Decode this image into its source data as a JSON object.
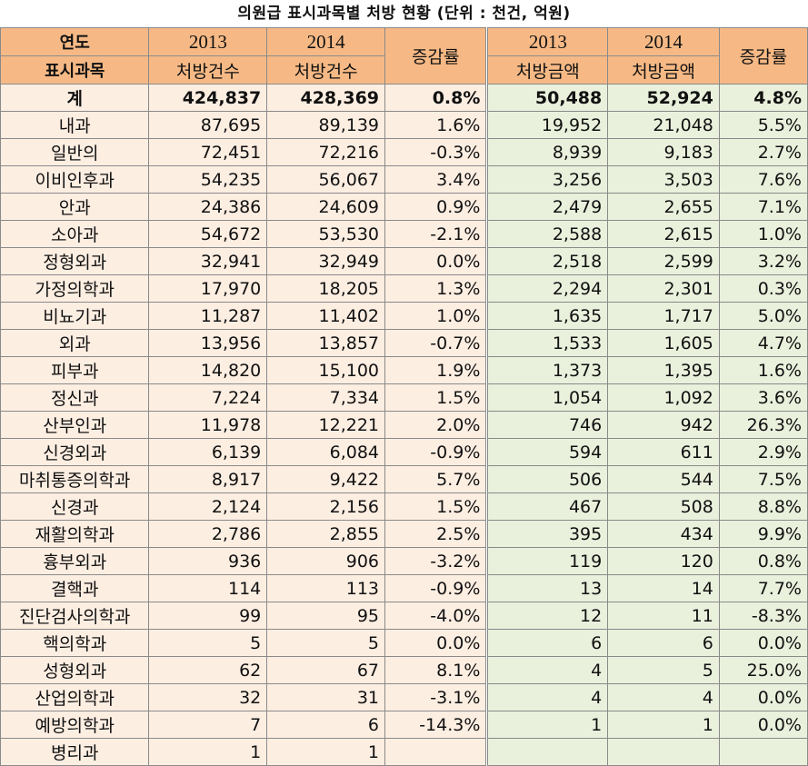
{
  "title": "의원급 표시과목별 처방 현황  (단위 : 천건, 억원)",
  "header": {
    "year_label": "연도",
    "dept_label": "표시과목",
    "year1": "2013",
    "year2": "2014",
    "count_label": "처방건수",
    "amount_label": "처방금액",
    "rate_label": "증감률"
  },
  "rows": [
    {
      "dept": "계",
      "c13": "424,837",
      "c14": "428,369",
      "cr": "0.8%",
      "a13": "50,488",
      "a14": "52,924",
      "ar": "4.8%"
    },
    {
      "dept": "내과",
      "c13": "87,695",
      "c14": "89,139",
      "cr": "1.6%",
      "a13": "19,952",
      "a14": "21,048",
      "ar": "5.5%"
    },
    {
      "dept": "일반의",
      "c13": "72,451",
      "c14": "72,216",
      "cr": "-0.3%",
      "a13": "8,939",
      "a14": "9,183",
      "ar": "2.7%"
    },
    {
      "dept": "이비인후과",
      "c13": "54,235",
      "c14": "56,067",
      "cr": "3.4%",
      "a13": "3,256",
      "a14": "3,503",
      "ar": "7.6%"
    },
    {
      "dept": "안과",
      "c13": "24,386",
      "c14": "24,609",
      "cr": "0.9%",
      "a13": "2,479",
      "a14": "2,655",
      "ar": "7.1%"
    },
    {
      "dept": "소아과",
      "c13": "54,672",
      "c14": "53,530",
      "cr": "-2.1%",
      "a13": "2,588",
      "a14": "2,615",
      "ar": "1.0%"
    },
    {
      "dept": "정형외과",
      "c13": "32,941",
      "c14": "32,949",
      "cr": "0.0%",
      "a13": "2,518",
      "a14": "2,599",
      "ar": "3.2%"
    },
    {
      "dept": "가정의학과",
      "c13": "17,970",
      "c14": "18,205",
      "cr": "1.3%",
      "a13": "2,294",
      "a14": "2,301",
      "ar": "0.3%"
    },
    {
      "dept": "비뇨기과",
      "c13": "11,287",
      "c14": "11,402",
      "cr": "1.0%",
      "a13": "1,635",
      "a14": "1,717",
      "ar": "5.0%"
    },
    {
      "dept": "외과",
      "c13": "13,956",
      "c14": "13,857",
      "cr": "-0.7%",
      "a13": "1,533",
      "a14": "1,605",
      "ar": "4.7%"
    },
    {
      "dept": "피부과",
      "c13": "14,820",
      "c14": "15,100",
      "cr": "1.9%",
      "a13": "1,373",
      "a14": "1,395",
      "ar": "1.6%"
    },
    {
      "dept": "정신과",
      "c13": "7,224",
      "c14": "7,334",
      "cr": "1.5%",
      "a13": "1,054",
      "a14": "1,092",
      "ar": "3.6%"
    },
    {
      "dept": "산부인과",
      "c13": "11,978",
      "c14": "12,221",
      "cr": "2.0%",
      "a13": "746",
      "a14": "942",
      "ar": "26.3%"
    },
    {
      "dept": "신경외과",
      "c13": "6,139",
      "c14": "6,084",
      "cr": "-0.9%",
      "a13": "594",
      "a14": "611",
      "ar": "2.9%"
    },
    {
      "dept": "마취통증의학과",
      "c13": "8,917",
      "c14": "9,422",
      "cr": "5.7%",
      "a13": "506",
      "a14": "544",
      "ar": "7.5%"
    },
    {
      "dept": "신경과",
      "c13": "2,124",
      "c14": "2,156",
      "cr": "1.5%",
      "a13": "467",
      "a14": "508",
      "ar": "8.8%"
    },
    {
      "dept": "재활의학과",
      "c13": "2,786",
      "c14": "2,855",
      "cr": "2.5%",
      "a13": "395",
      "a14": "434",
      "ar": "9.9%"
    },
    {
      "dept": "흉부외과",
      "c13": "936",
      "c14": "906",
      "cr": "-3.2%",
      "a13": "119",
      "a14": "120",
      "ar": "0.8%"
    },
    {
      "dept": "결핵과",
      "c13": "114",
      "c14": "113",
      "cr": "-0.9%",
      "a13": "13",
      "a14": "14",
      "ar": "7.7%"
    },
    {
      "dept": "진단검사의학과",
      "c13": "99",
      "c14": "95",
      "cr": "-4.0%",
      "a13": "12",
      "a14": "11",
      "ar": "-8.3%"
    },
    {
      "dept": "핵의학과",
      "c13": "5",
      "c14": "5",
      "cr": "0.0%",
      "a13": "6",
      "a14": "6",
      "ar": "0.0%"
    },
    {
      "dept": "성형외과",
      "c13": "62",
      "c14": "67",
      "cr": "8.1%",
      "a13": "4",
      "a14": "5",
      "ar": "25.0%"
    },
    {
      "dept": "산업의학과",
      "c13": "32",
      "c14": "31",
      "cr": "-3.1%",
      "a13": "4",
      "a14": "4",
      "ar": "0.0%"
    },
    {
      "dept": "예방의학과",
      "c13": "7",
      "c14": "6",
      "cr": "-14.3%",
      "a13": "1",
      "a14": "1",
      "ar": "0.0%"
    },
    {
      "dept": "병리과",
      "c13": "1",
      "c14": "1",
      "cr": "",
      "a13": "",
      "a14": "",
      "ar": ""
    }
  ]
}
